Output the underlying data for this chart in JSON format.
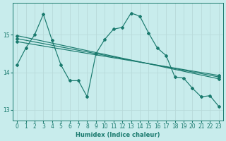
{
  "xlabel": "Humidex (Indice chaleur)",
  "background_color": "#c8ecec",
  "grid_color": "#d0e8e8",
  "line_color": "#1a7a6e",
  "xlim": [
    -0.5,
    23.5
  ],
  "ylim": [
    12.72,
    15.85
  ],
  "yticks": [
    13,
    14,
    15
  ],
  "xticks": [
    0,
    1,
    2,
    3,
    4,
    5,
    6,
    7,
    8,
    9,
    10,
    11,
    12,
    13,
    14,
    15,
    16,
    17,
    18,
    19,
    20,
    21,
    22,
    23
  ],
  "jagged_x": [
    0,
    1,
    2,
    3,
    4,
    5,
    6,
    7,
    8,
    9,
    10,
    11,
    12,
    13,
    14,
    15,
    16,
    17,
    18,
    19,
    20,
    21,
    22,
    23
  ],
  "jagged_y": [
    14.2,
    14.65,
    15.0,
    15.55,
    14.85,
    14.2,
    13.78,
    13.78,
    13.35,
    14.5,
    14.88,
    15.15,
    15.2,
    15.58,
    15.5,
    15.05,
    14.65,
    14.45,
    13.88,
    13.85,
    13.58,
    13.35,
    13.38,
    13.1
  ],
  "trend_lines": [
    [
      14.82,
      13.92
    ],
    [
      14.9,
      13.88
    ],
    [
      14.98,
      13.83
    ]
  ]
}
